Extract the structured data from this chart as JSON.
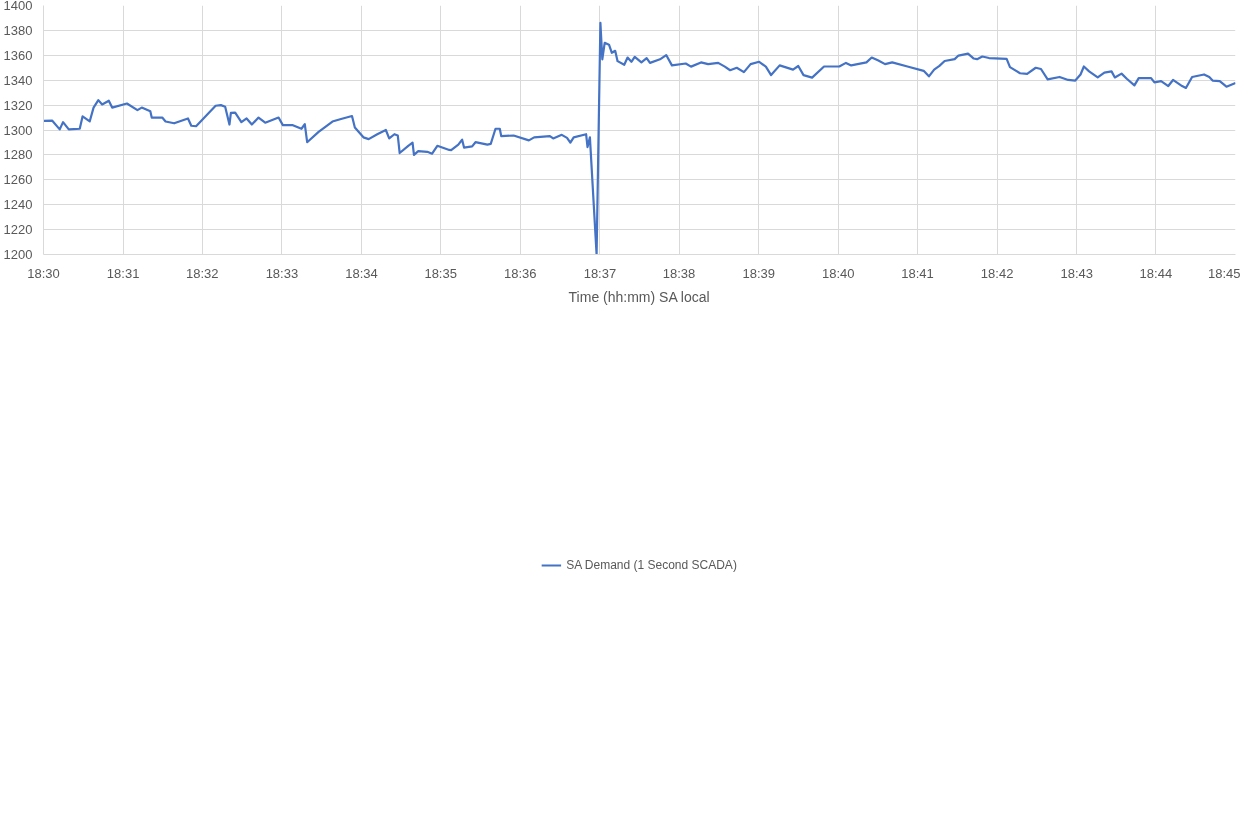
{
  "chart_data": {
    "type": "line",
    "xlabel": "Time (hh:mm) SA local",
    "xlim": [
      18.5,
      18.75
    ],
    "ylim": [
      1200,
      1400
    ],
    "xticks": [
      {
        "value": 18.5,
        "label": "18:30"
      },
      {
        "value": 18.5167,
        "label": "18:31"
      },
      {
        "value": 18.5333,
        "label": "18:32"
      },
      {
        "value": 18.55,
        "label": "18:33"
      },
      {
        "value": 18.5667,
        "label": "18:34"
      },
      {
        "value": 18.5833,
        "label": "18:35"
      },
      {
        "value": 18.6,
        "label": "18:36"
      },
      {
        "value": 18.6167,
        "label": "18:37"
      },
      {
        "value": 18.6333,
        "label": "18:38"
      },
      {
        "value": 18.65,
        "label": "18:39"
      },
      {
        "value": 18.6667,
        "label": "18:40"
      },
      {
        "value": 18.6833,
        "label": "18:41"
      },
      {
        "value": 18.7,
        "label": "18:42"
      },
      {
        "value": 18.7167,
        "label": "18:43"
      },
      {
        "value": 18.7333,
        "label": "18:44"
      },
      {
        "value": 18.75,
        "label": "18:45"
      }
    ],
    "yticks": [
      1200,
      1220,
      1240,
      1260,
      1280,
      1300,
      1320,
      1340,
      1360,
      1380,
      1400
    ],
    "grid": true,
    "legend": "bottom",
    "marker": "none",
    "line_style": "solid",
    "series": [
      {
        "name": "SA Demand (1 Second SCADA)",
        "color": "#4472c4",
        "x": [
          18.5,
          18.5018,
          18.5034,
          18.5041,
          18.5053,
          18.5076,
          18.5082,
          18.5097,
          18.5105,
          18.5115,
          18.5123,
          18.5137,
          18.5144,
          18.5175,
          18.5197,
          18.5206,
          18.5224,
          18.5227,
          18.5249,
          18.5256,
          18.5274,
          18.5303,
          18.531,
          18.532,
          18.5343,
          18.5361,
          18.5372,
          18.5381,
          18.539,
          18.5393,
          18.5402,
          18.5415,
          18.5426,
          18.5437,
          18.5451,
          18.5465,
          18.5493,
          18.5502,
          18.5523,
          18.5541,
          18.5548,
          18.5553,
          18.5577,
          18.5606,
          18.5624,
          18.5647,
          18.5653,
          18.5671,
          18.5682,
          18.57,
          18.5718,
          18.5725,
          18.5736,
          18.5743,
          18.5747,
          18.5765,
          18.5774,
          18.5777,
          18.5786,
          18.5805,
          18.5815,
          18.5826,
          18.5851,
          18.5855,
          18.587,
          18.5878,
          18.5882,
          18.5899,
          18.5906,
          18.5931,
          18.5938,
          18.5948,
          18.5957,
          18.596,
          18.5986,
          18.6018,
          18.6029,
          18.6062,
          18.6069,
          18.6087,
          18.6098,
          18.6105,
          18.6112,
          18.6138,
          18.6141,
          18.6146,
          18.616,
          18.6168,
          18.6172,
          18.6177,
          18.6186,
          18.6192,
          18.6199,
          18.6204,
          18.6218,
          18.6225,
          18.6233,
          18.624,
          18.6254,
          18.6265,
          18.6272,
          18.6293,
          18.6306,
          18.6318,
          18.6347,
          18.6358,
          18.6379,
          18.6394,
          18.6415,
          18.6429,
          18.644,
          18.6454,
          18.6469,
          18.6483,
          18.6501,
          18.6515,
          18.6526,
          18.6544,
          18.6572,
          18.6583,
          18.6594,
          18.6612,
          18.6637,
          18.6669,
          18.6683,
          18.6694,
          18.6726,
          18.6737,
          18.6751,
          18.6765,
          18.678,
          18.6812,
          18.6846,
          18.6857,
          18.6868,
          18.6879,
          18.689,
          18.6911,
          18.6919,
          18.6939,
          18.6951,
          18.6958,
          18.6969,
          18.6983,
          18.702,
          18.7027,
          18.7048,
          18.7063,
          18.7081,
          18.7092,
          18.7106,
          18.7131,
          18.7149,
          18.7164,
          18.7175,
          18.7182,
          18.7193,
          18.7211,
          18.7225,
          18.724,
          18.7247,
          18.7261,
          18.7272,
          18.7288,
          18.7297,
          18.7323,
          18.733,
          18.7344,
          18.7359,
          18.7369,
          18.7388,
          18.7396,
          18.7409,
          18.7434,
          18.7445,
          18.7452,
          18.7467,
          18.7481,
          18.75
        ],
        "values": [
          1307.3,
          1307.6,
          1300.5,
          1306.3,
          1300.5,
          1301,
          1311,
          1307,
          1318,
          1324,
          1320.5,
          1323.5,
          1318,
          1321.3,
          1316,
          1318,
          1315,
          1310,
          1310,
          1306.8,
          1305.4,
          1309.3,
          1303.4,
          1303,
          1312.2,
          1319.5,
          1320,
          1318.7,
          1304.4,
          1313.7,
          1313.9,
          1306.3,
          1309.3,
          1304.4,
          1310,
          1305.9,
          1310,
          1303.9,
          1303.9,
          1301,
          1304.7,
          1290.2,
          1298.5,
          1306.8,
          1308.8,
          1311.2,
          1302,
          1294.1,
          1292.7,
          1296.6,
          1300,
          1293.2,
          1296.6,
          1295.6,
          1281.5,
          1287.3,
          1289.8,
          1280,
          1283,
          1282.5,
          1281,
          1287.3,
          1284,
          1283.9,
          1288.3,
          1292.2,
          1285.9,
          1286.8,
          1290.2,
          1288.3,
          1288.8,
          1301,
          1301,
          1295.1,
          1295.6,
          1291.7,
          1294.1,
          1295.1,
          1293.2,
          1296.1,
          1293.7,
          1289.8,
          1294.1,
          1296.6,
          1286.3,
          1294.1,
          1200,
          1386,
          1356.8,
          1370,
          1368.5,
          1362,
          1363.6,
          1355.3,
          1352.4,
          1358.2,
          1354.8,
          1358.8,
          1354.3,
          1357.7,
          1353.9,
          1356.8,
          1360.2,
          1351.9,
          1353.4,
          1350.9,
          1354.3,
          1352.9,
          1353.9,
          1350.9,
          1348,
          1350,
          1346.5,
          1352.9,
          1354.8,
          1350.9,
          1344.1,
          1351.9,
          1348.5,
          1351.4,
          1344.1,
          1342.1,
          1351,
          1351,
          1353.9,
          1351.9,
          1354.3,
          1358.2,
          1355.8,
          1352.9,
          1354.3,
          1351,
          1347.5,
          1343.1,
          1348.5,
          1351.5,
          1355.4,
          1356.9,
          1359.8,
          1361.3,
          1357.4,
          1356.9,
          1359,
          1357.8,
          1357.1,
          1350.5,
          1345.6,
          1345.1,
          1350,
          1349,
          1340.7,
          1342.6,
          1340.2,
          1339.7,
          1344.6,
          1351,
          1347.1,
          1342.2,
          1346.1,
          1347.1,
          1342.2,
          1345.3,
          1341.2,
          1335.8,
          1341.7,
          1341.7,
          1338.2,
          1339.2,
          1335.3,
          1340.2,
          1335.3,
          1333.8,
          1342.6,
          1344.6,
          1342.6,
          1339.7,
          1339.2,
          1334.8,
          1337.7
        ]
      }
    ]
  }
}
